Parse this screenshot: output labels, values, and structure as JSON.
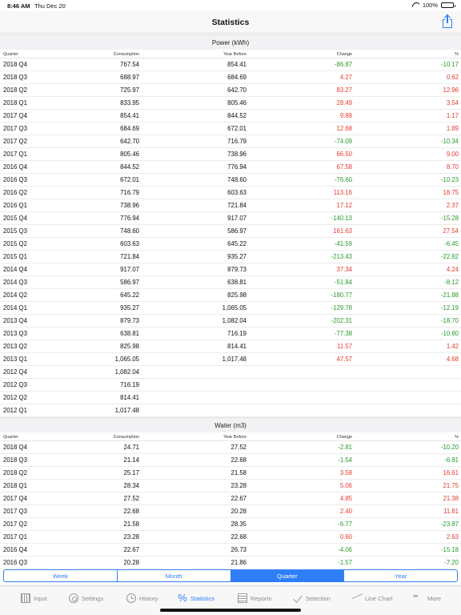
{
  "status_bar": {
    "time": "8:46 AM",
    "date": "Thu Dec 20",
    "battery": "100%"
  },
  "nav": {
    "title": "Statistics"
  },
  "columns": {
    "quarter": "Quarter",
    "consumption": "Consumption",
    "year_before": "Year Before",
    "change": "Change",
    "pct": "%"
  },
  "sections": [
    {
      "title": "Power (kWh)",
      "rows": [
        {
          "q": "2018 Q4",
          "cons": "767.54",
          "yb": "854.41",
          "ch": "-86.87",
          "pct": "-10.17",
          "dir": "neg"
        },
        {
          "q": "2018 Q3",
          "cons": "688.97",
          "yb": "684.69",
          "ch": "4.27",
          "pct": "0.62",
          "dir": "pos"
        },
        {
          "q": "2018 Q2",
          "cons": "725.97",
          "yb": "642.70",
          "ch": "83.27",
          "pct": "12.96",
          "dir": "pos"
        },
        {
          "q": "2018 Q1",
          "cons": "833.95",
          "yb": "805.46",
          "ch": "28.49",
          "pct": "3.54",
          "dir": "pos"
        },
        {
          "q": "2017 Q4",
          "cons": "854.41",
          "yb": "844.52",
          "ch": "9.89",
          "pct": "1.17",
          "dir": "pos"
        },
        {
          "q": "2017 Q3",
          "cons": "684.69",
          "yb": "672.01",
          "ch": "12.68",
          "pct": "1.89",
          "dir": "pos"
        },
        {
          "q": "2017 Q2",
          "cons": "642.70",
          "yb": "716.79",
          "ch": "-74.09",
          "pct": "-10.34",
          "dir": "neg"
        },
        {
          "q": "2017 Q1",
          "cons": "805.46",
          "yb": "738.96",
          "ch": "66.50",
          "pct": "9.00",
          "dir": "pos"
        },
        {
          "q": "2016 Q4",
          "cons": "844.52",
          "yb": "776.94",
          "ch": "67.58",
          "pct": "8.70",
          "dir": "pos"
        },
        {
          "q": "2016 Q3",
          "cons": "672.01",
          "yb": "748.60",
          "ch": "-76.60",
          "pct": "-10.23",
          "dir": "neg"
        },
        {
          "q": "2016 Q2",
          "cons": "716.79",
          "yb": "603.63",
          "ch": "113.16",
          "pct": "18.75",
          "dir": "pos"
        },
        {
          "q": "2016 Q1",
          "cons": "738.96",
          "yb": "721.84",
          "ch": "17.12",
          "pct": "2.37",
          "dir": "pos"
        },
        {
          "q": "2015 Q4",
          "cons": "776.94",
          "yb": "917.07",
          "ch": "-140.13",
          "pct": "-15.28",
          "dir": "neg"
        },
        {
          "q": "2015 Q3",
          "cons": "748.60",
          "yb": "586.97",
          "ch": "161.63",
          "pct": "27.54",
          "dir": "pos"
        },
        {
          "q": "2015 Q2",
          "cons": "603.63",
          "yb": "645.22",
          "ch": "-41.59",
          "pct": "-6.45",
          "dir": "neg"
        },
        {
          "q": "2015 Q1",
          "cons": "721.84",
          "yb": "935.27",
          "ch": "-213.43",
          "pct": "-22.82",
          "dir": "neg"
        },
        {
          "q": "2014 Q4",
          "cons": "917.07",
          "yb": "879.73",
          "ch": "37.34",
          "pct": "4.24",
          "dir": "pos"
        },
        {
          "q": "2014 Q3",
          "cons": "586.97",
          "yb": "638.81",
          "ch": "-51.84",
          "pct": "-8.12",
          "dir": "neg"
        },
        {
          "q": "2014 Q2",
          "cons": "645.22",
          "yb": "825.98",
          "ch": "-180.77",
          "pct": "-21.88",
          "dir": "neg"
        },
        {
          "q": "2014 Q1",
          "cons": "935.27",
          "yb": "1,065.05",
          "ch": "-129.78",
          "pct": "-12.19",
          "dir": "neg"
        },
        {
          "q": "2013 Q4",
          "cons": "879.73",
          "yb": "1,082.04",
          "ch": "-202.31",
          "pct": "-18.70",
          "dir": "neg"
        },
        {
          "q": "2013 Q3",
          "cons": "638.81",
          "yb": "716.19",
          "ch": "-77.38",
          "pct": "-10.80",
          "dir": "neg"
        },
        {
          "q": "2013 Q2",
          "cons": "825.98",
          "yb": "814.41",
          "ch": "11.57",
          "pct": "1.42",
          "dir": "pos"
        },
        {
          "q": "2013 Q1",
          "cons": "1,065.05",
          "yb": "1,017.48",
          "ch": "47.57",
          "pct": "4.68",
          "dir": "pos"
        },
        {
          "q": "2012 Q4",
          "cons": "1,082.04",
          "yb": "",
          "ch": "",
          "pct": "",
          "dir": ""
        },
        {
          "q": "2012 Q3",
          "cons": "716.19",
          "yb": "",
          "ch": "",
          "pct": "",
          "dir": ""
        },
        {
          "q": "2012 Q2",
          "cons": "814.41",
          "yb": "",
          "ch": "",
          "pct": "",
          "dir": ""
        },
        {
          "q": "2012 Q1",
          "cons": "1,017.48",
          "yb": "",
          "ch": "",
          "pct": "",
          "dir": ""
        }
      ]
    },
    {
      "title": "Water (m3)",
      "rows": [
        {
          "q": "2018 Q4",
          "cons": "24.71",
          "yb": "27.52",
          "ch": "-2.81",
          "pct": "-10.20",
          "dir": "neg"
        },
        {
          "q": "2018 Q3",
          "cons": "21.14",
          "yb": "22.68",
          "ch": "-1.54",
          "pct": "-6.81",
          "dir": "neg"
        },
        {
          "q": "2018 Q2",
          "cons": "25.17",
          "yb": "21.58",
          "ch": "3.58",
          "pct": "16.61",
          "dir": "pos"
        },
        {
          "q": "2018 Q1",
          "cons": "28.34",
          "yb": "23.28",
          "ch": "5.06",
          "pct": "21.75",
          "dir": "pos"
        },
        {
          "q": "2017 Q4",
          "cons": "27.52",
          "yb": "22.67",
          "ch": "4.85",
          "pct": "21.38",
          "dir": "pos"
        },
        {
          "q": "2017 Q3",
          "cons": "22.68",
          "yb": "20.28",
          "ch": "2.40",
          "pct": "11.81",
          "dir": "pos"
        },
        {
          "q": "2017 Q2",
          "cons": "21.58",
          "yb": "28.35",
          "ch": "-6.77",
          "pct": "-23.87",
          "dir": "neg"
        },
        {
          "q": "2017 Q1",
          "cons": "23.28",
          "yb": "22.68",
          "ch": "0.60",
          "pct": "2.63",
          "dir": "pos"
        },
        {
          "q": "2016 Q4",
          "cons": "22.67",
          "yb": "26.73",
          "ch": "-4.06",
          "pct": "-15.18",
          "dir": "neg"
        },
        {
          "q": "2016 Q3",
          "cons": "20.28",
          "yb": "21.86",
          "ch": "-1.57",
          "pct": "-7.20",
          "dir": "neg"
        }
      ]
    }
  ],
  "segments": [
    {
      "label": "Week",
      "active": false
    },
    {
      "label": "Month",
      "active": false
    },
    {
      "label": "Quarter",
      "active": true
    },
    {
      "label": "Year",
      "active": false
    }
  ],
  "tabs": [
    {
      "label": "Input",
      "icon": "input-icon",
      "cls": "i-input",
      "active": false
    },
    {
      "label": "Settings",
      "icon": "settings-icon",
      "cls": "i-settings",
      "active": false
    },
    {
      "label": "History",
      "icon": "history-icon",
      "cls": "i-history",
      "active": false
    },
    {
      "label": "Statistics",
      "icon": "percent-icon",
      "cls": "i-stats",
      "active": true
    },
    {
      "label": "Reports",
      "icon": "reports-icon",
      "cls": "i-reports",
      "active": false
    },
    {
      "label": "Selection",
      "icon": "checkmark-icon",
      "cls": "i-selection",
      "active": false
    },
    {
      "label": "Line Chart",
      "icon": "line-chart-icon",
      "cls": "i-chart",
      "active": false
    },
    {
      "label": "More",
      "icon": "more-icon",
      "cls": "i-more",
      "active": false
    }
  ],
  "colors": {
    "accent": "#2f7ef7",
    "positive_change": "#e53b30",
    "negative_change": "#2b9a2e"
  }
}
